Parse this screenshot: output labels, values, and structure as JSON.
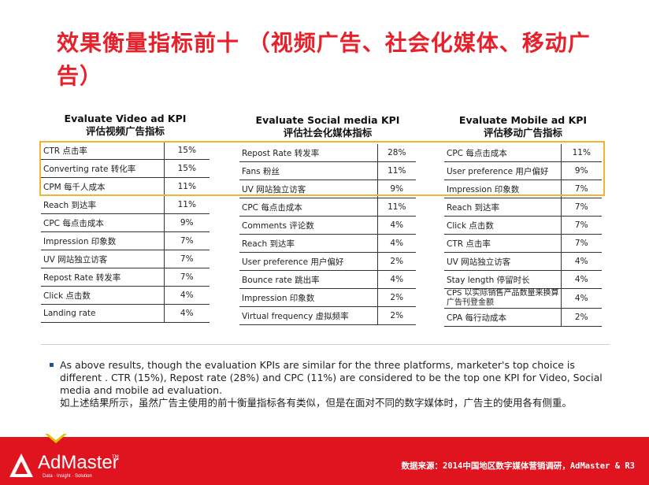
{
  "title": "效果衡量指标前十 （视频广告、社会化媒体、移动广告）",
  "columns": [
    {
      "heading_en": "Evaluate Video ad KPI",
      "heading_cn": "评估视频广告指标",
      "rows": [
        {
          "label": "CTR 点击率",
          "value": "15%"
        },
        {
          "label": "Converting rate 转化率",
          "value": "15%"
        },
        {
          "label": "CPM 每千人成本",
          "value": "11%"
        },
        {
          "label": "Reach 到达率",
          "value": "11%"
        },
        {
          "label": "CPC 每点击成本",
          "value": "9%"
        },
        {
          "label": "Impression 印象数",
          "value": "7%"
        },
        {
          "label": "UV 网站独立访客",
          "value": "7%"
        },
        {
          "label": "Repost Rate 转发率",
          "value": "7%"
        },
        {
          "label": "Click 点击数",
          "value": "4%"
        },
        {
          "label": "Landing rate",
          "value": "4%"
        }
      ]
    },
    {
      "heading_en": "Evaluate Social media KPI",
      "heading_cn": "评估社会化媒体指标",
      "rows": [
        {
          "label": "Repost Rate 转发率",
          "value": "28%"
        },
        {
          "label": "Fans 粉丝",
          "value": "11%"
        },
        {
          "label": "UV 网站独立访客",
          "value": "9%"
        },
        {
          "label": "CPC 每点击成本",
          "value": "11%"
        },
        {
          "label": "Comments 评论数",
          "value": "4%"
        },
        {
          "label": "Reach 到达率",
          "value": "4%"
        },
        {
          "label": "User preference 用户偏好",
          "value": "2%"
        },
        {
          "label": "Bounce rate 跳出率",
          "value": "4%"
        },
        {
          "label": "Impression 印象数",
          "value": "2%"
        },
        {
          "label": "Virtual frequency 虚拟频率",
          "value": "2%"
        }
      ]
    },
    {
      "heading_en": "Evaluate Mobile ad KPI",
      "heading_cn": "评估移动广告指标",
      "rows": [
        {
          "label": "CPC 每点击成本",
          "value": "11%"
        },
        {
          "label": "User preference 用户偏好",
          "value": "9%"
        },
        {
          "label": "Impression 印象数",
          "value": "7%"
        },
        {
          "label": "Reach 到达率",
          "value": "7%"
        },
        {
          "label": "Click 点击数",
          "value": "7%"
        },
        {
          "label": "CTR 点击率",
          "value": "7%"
        },
        {
          "label": "UV 网站独立访客",
          "value": "4%"
        },
        {
          "label": "Stay length 停留时长",
          "value": "4%"
        },
        {
          "label": "CPS 以实际销售产品数量来换算广告刊登金额",
          "value": "4%"
        },
        {
          "label": "CPA 每行动成本",
          "value": "2%"
        }
      ]
    }
  ],
  "note": {
    "bullet": "▪",
    "en": "As above results, though the evaluation KPIs are similar for the three platforms,  marketer's top choice  is different . CTR (15%), Repost rate (28%) and CPC (11%) are considered to be the top one KPI for Video, Social media and mobile ad evaluation.",
    "cn": "如上述结果所示，虽然广告主使用的前十衡量指标各有类似，但是在面对不同的数字媒体时，广告主的使用各有侧重。"
  },
  "footer": {
    "logo_name": "AdMaster",
    "logo_tm": "TM",
    "logo_tagline": "Data · Insight · Solution",
    "source": "数据来源：2014中国地区数字媒体营销调研，AdMaster & R3"
  },
  "colors": {
    "title": "#e8202a",
    "highlight_border": "#f2b233",
    "footer_bg": "#e0141e",
    "bullet": "#1a4fa0"
  }
}
